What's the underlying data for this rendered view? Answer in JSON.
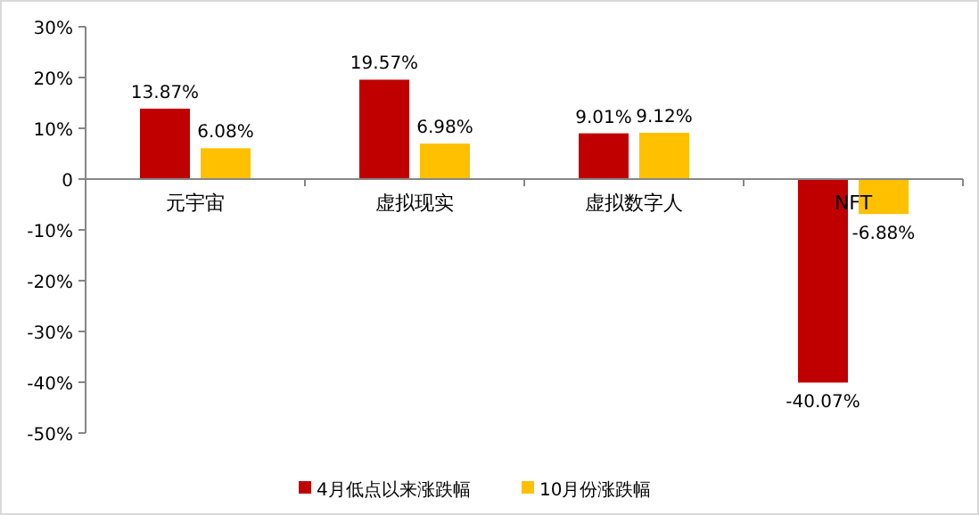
{
  "chart_data": {
    "type": "bar",
    "categories": [
      "元宇宙",
      "虚拟现实",
      "虚拟数字人",
      "NFT"
    ],
    "series": [
      {
        "name": "4月低点以来涨跌幅",
        "color": "#c00000",
        "values": [
          13.87,
          19.57,
          9.01,
          -40.07
        ],
        "value_labels": [
          "13.87%",
          "19.57%",
          "9.01%",
          "-40.07%"
        ]
      },
      {
        "name": "10月份涨跌幅",
        "color": "#ffc000",
        "values": [
          6.08,
          6.98,
          9.12,
          -6.88
        ],
        "value_labels": [
          "6.08%",
          "6.98%",
          "9.12%",
          "-6.88%"
        ]
      }
    ],
    "ylim": [
      -50,
      30
    ],
    "yticks": [
      {
        "value": -50,
        "label": "-50%"
      },
      {
        "value": -40,
        "label": "-40%"
      },
      {
        "value": -30,
        "label": "-30%"
      },
      {
        "value": -20,
        "label": "-20%"
      },
      {
        "value": -10,
        "label": "-10%"
      },
      {
        "value": 0,
        "label": "0"
      },
      {
        "value": 10,
        "label": "10%"
      },
      {
        "value": 20,
        "label": "20%"
      },
      {
        "value": 30,
        "label": "30%"
      }
    ],
    "grid": false,
    "legend": "bottom"
  }
}
